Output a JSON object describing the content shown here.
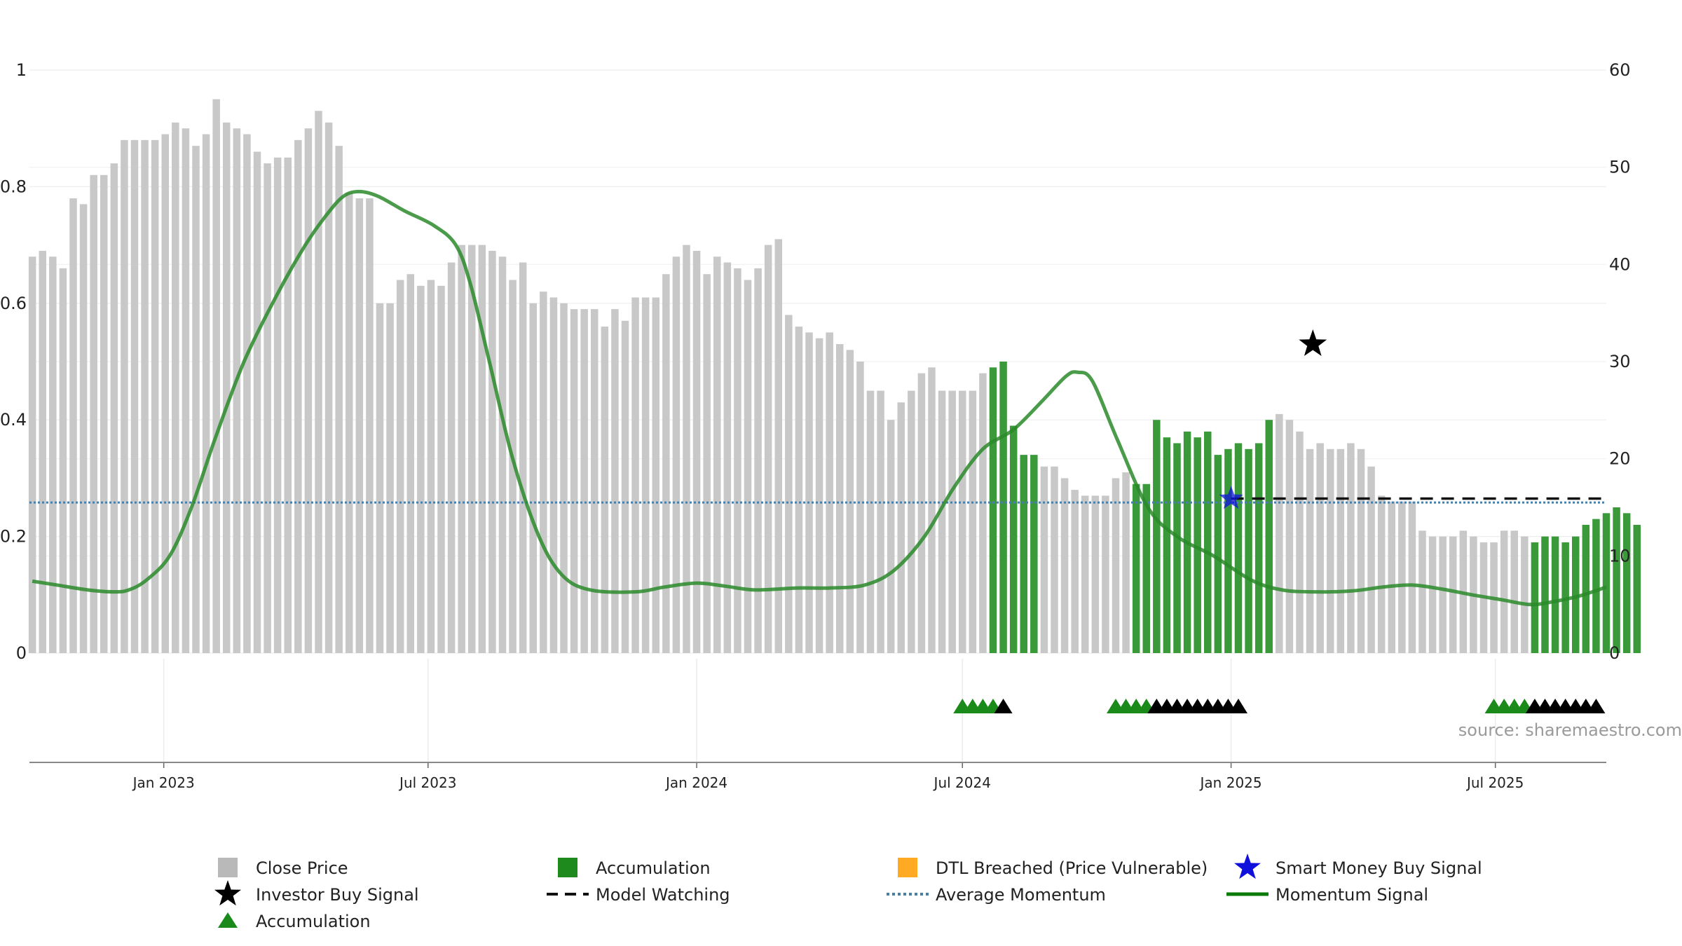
{
  "chart_data": {
    "type": "bar",
    "title": "",
    "xlabel": "",
    "ylabel": "",
    "y_left": {
      "range": [
        0,
        1
      ],
      "tick_labels": [
        "0",
        "0.2",
        "0.4",
        "0.6",
        "0.8",
        "1"
      ],
      "tick_values": [
        0,
        0.2,
        0.4,
        0.6,
        0.8,
        1
      ]
    },
    "y_right": {
      "range": [
        0,
        60
      ],
      "tick_labels": [
        "0",
        "10",
        "20",
        "30",
        "40",
        "50",
        "60"
      ],
      "tick_values": [
        0,
        10,
        20,
        30,
        40,
        50,
        60
      ]
    },
    "x_ticks": [
      {
        "label": "Jan 2023",
        "date": "2023-01-01"
      },
      {
        "label": "Jul 2023",
        "date": "2023-07-01"
      },
      {
        "label": "Jan 2024",
        "date": "2024-01-01"
      },
      {
        "label": "Jul 2024",
        "date": "2024-07-01"
      },
      {
        "label": "Jan 2025",
        "date": "2025-01-01"
      },
      {
        "label": "Jul 2025",
        "date": "2025-07-01"
      }
    ],
    "x_range": [
      "2022-10-01",
      "2025-09-15"
    ],
    "grid": true,
    "colors": {
      "close_price": "#c8c8c8",
      "accumulation_bar": "#3a9a3a",
      "accumulation_marker": "#1a8a1a",
      "signal_marker": "#000000",
      "momentum": "#2a8a2a",
      "momentum_highlight": "#0a8a0a",
      "average_momentum": "#4a7fa8",
      "model_watching": "#111111",
      "smart_money": "#1010dd",
      "dtl_breached": "#ffaa22"
    },
    "bars": {
      "start_date": "2022-10-03",
      "step_days": 7,
      "accumulation_index_ranges": [
        [
          94,
          98
        ],
        [
          108,
          121
        ],
        [
          147,
          158
        ]
      ],
      "values": [
        0.68,
        0.69,
        0.68,
        0.66,
        0.78,
        0.77,
        0.82,
        0.82,
        0.84,
        0.88,
        0.88,
        0.88,
        0.88,
        0.89,
        0.91,
        0.9,
        0.87,
        0.89,
        0.95,
        0.91,
        0.9,
        0.89,
        0.86,
        0.84,
        0.85,
        0.85,
        0.88,
        0.9,
        0.93,
        0.91,
        0.87,
        0.79,
        0.78,
        0.78,
        0.6,
        0.6,
        0.64,
        0.65,
        0.63,
        0.64,
        0.63,
        0.67,
        0.7,
        0.7,
        0.7,
        0.69,
        0.68,
        0.64,
        0.67,
        0.6,
        0.62,
        0.61,
        0.6,
        0.59,
        0.59,
        0.59,
        0.56,
        0.59,
        0.57,
        0.61,
        0.61,
        0.61,
        0.65,
        0.68,
        0.7,
        0.69,
        0.65,
        0.68,
        0.67,
        0.66,
        0.64,
        0.66,
        0.7,
        0.71,
        0.58,
        0.56,
        0.55,
        0.54,
        0.55,
        0.53,
        0.52,
        0.5,
        0.45,
        0.45,
        0.4,
        0.43,
        0.45,
        0.48,
        0.49,
        0.45,
        0.45,
        0.45,
        0.45,
        0.48,
        0.49,
        0.5,
        0.39,
        0.34,
        0.34,
        0.32,
        0.32,
        0.3,
        0.28,
        0.27,
        0.27,
        0.27,
        0.3,
        0.31,
        0.29,
        0.29,
        0.4,
        0.37,
        0.36,
        0.38,
        0.37,
        0.38,
        0.34,
        0.35,
        0.36,
        0.35,
        0.36,
        0.4,
        0.41,
        0.4,
        0.38,
        0.35,
        0.36,
        0.35,
        0.35,
        0.36,
        0.35,
        0.32,
        0.27,
        0.26,
        0.26,
        0.26,
        0.21,
        0.2,
        0.2,
        0.2,
        0.21,
        0.2,
        0.19,
        0.19,
        0.21,
        0.21,
        0.2,
        0.19,
        0.2,
        0.2,
        0.19,
        0.2,
        0.22,
        0.23,
        0.24,
        0.25,
        0.24,
        0.22
      ]
    },
    "momentum_signal": {
      "name": "Momentum Signal",
      "points": [
        [
          "2022-10-03",
          7.4
        ],
        [
          "2022-10-20",
          7.0
        ],
        [
          "2022-11-10",
          6.5
        ],
        [
          "2022-11-28",
          6.3
        ],
        [
          "2022-12-08",
          6.5
        ],
        [
          "2022-12-20",
          7.5
        ],
        [
          "2023-01-05",
          10.0
        ],
        [
          "2023-01-20",
          15.0
        ],
        [
          "2023-02-05",
          22.0
        ],
        [
          "2023-02-25",
          30.0
        ],
        [
          "2023-03-20",
          37.0
        ],
        [
          "2023-04-08",
          42.0
        ],
        [
          "2023-04-22",
          45.0
        ],
        [
          "2023-05-04",
          47.0
        ],
        [
          "2023-05-15",
          47.5
        ],
        [
          "2023-05-28",
          47.0
        ],
        [
          "2023-06-15",
          45.5
        ],
        [
          "2023-07-05",
          44.0
        ],
        [
          "2023-07-20",
          42.0
        ],
        [
          "2023-07-30",
          38.0
        ],
        [
          "2023-08-12",
          30.0
        ],
        [
          "2023-08-28",
          20.0
        ],
        [
          "2023-09-15",
          12.0
        ],
        [
          "2023-10-01",
          8.0
        ],
        [
          "2023-10-20",
          6.5
        ],
        [
          "2023-11-20",
          6.3
        ],
        [
          "2023-12-10",
          6.8
        ],
        [
          "2024-01-01",
          7.2
        ],
        [
          "2024-01-20",
          6.9
        ],
        [
          "2024-02-10",
          6.5
        ],
        [
          "2024-03-10",
          6.7
        ],
        [
          "2024-04-01",
          6.7
        ],
        [
          "2024-04-25",
          7.0
        ],
        [
          "2024-05-15",
          8.5
        ],
        [
          "2024-06-05",
          12.0
        ],
        [
          "2024-06-25",
          17.0
        ],
        [
          "2024-07-15",
          21.0
        ],
        [
          "2024-08-05",
          23.0
        ],
        [
          "2024-08-25",
          26.0
        ],
        [
          "2024-09-10",
          28.5
        ],
        [
          "2024-09-18",
          28.9
        ],
        [
          "2024-09-28",
          28.0
        ],
        [
          "2024-10-15",
          22.0
        ],
        [
          "2024-11-05",
          15.0
        ],
        [
          "2024-11-25",
          12.0
        ],
        [
          "2024-12-20",
          10.0
        ],
        [
          "2025-01-15",
          7.5
        ],
        [
          "2025-02-05",
          6.5
        ],
        [
          "2025-02-28",
          6.3
        ],
        [
          "2025-03-25",
          6.4
        ],
        [
          "2025-04-15",
          6.8
        ],
        [
          "2025-05-05",
          7.0
        ],
        [
          "2025-05-25",
          6.6
        ],
        [
          "2025-06-15",
          6.0
        ],
        [
          "2025-07-05",
          5.5
        ],
        [
          "2025-07-25",
          5.0
        ],
        [
          "2025-08-10",
          5.3
        ],
        [
          "2025-08-28",
          5.9
        ],
        [
          "2025-09-15",
          6.8
        ]
      ]
    },
    "average_momentum": {
      "name": "Average Momentum",
      "value": 15.5
    },
    "model_watching": {
      "name": "Model Watching",
      "value": 15.9,
      "start": "2025-01-01"
    },
    "smart_money_buy_signal": {
      "name": "Smart Money Buy Signal",
      "date": "2025-01-01",
      "value": 15.9
    },
    "investor_buy_signal": {
      "name": "Investor Buy Signal",
      "date": "2025-02-26",
      "value": 31.8
    },
    "markers_row": [
      {
        "date": "2024-07-01",
        "color": "green"
      },
      {
        "date": "2024-07-08",
        "color": "green"
      },
      {
        "date": "2024-07-15",
        "color": "green"
      },
      {
        "date": "2024-07-22",
        "color": "green"
      },
      {
        "date": "2024-07-29",
        "color": "black"
      },
      {
        "date": "2024-10-14",
        "color": "green"
      },
      {
        "date": "2024-10-21",
        "color": "green"
      },
      {
        "date": "2024-10-28",
        "color": "green"
      },
      {
        "date": "2024-11-04",
        "color": "green"
      },
      {
        "date": "2024-11-11",
        "color": "black"
      },
      {
        "date": "2024-11-18",
        "color": "black"
      },
      {
        "date": "2024-11-25",
        "color": "black"
      },
      {
        "date": "2024-12-02",
        "color": "black"
      },
      {
        "date": "2024-12-09",
        "color": "black"
      },
      {
        "date": "2024-12-16",
        "color": "black"
      },
      {
        "date": "2024-12-23",
        "color": "black"
      },
      {
        "date": "2024-12-30",
        "color": "black"
      },
      {
        "date": "2025-01-06",
        "color": "black"
      },
      {
        "date": "2025-06-30",
        "color": "green"
      },
      {
        "date": "2025-07-07",
        "color": "green"
      },
      {
        "date": "2025-07-14",
        "color": "green"
      },
      {
        "date": "2025-07-21",
        "color": "green"
      },
      {
        "date": "2025-07-28",
        "color": "black"
      },
      {
        "date": "2025-08-04",
        "color": "black"
      },
      {
        "date": "2025-08-11",
        "color": "black"
      },
      {
        "date": "2025-08-18",
        "color": "black"
      },
      {
        "date": "2025-08-25",
        "color": "black"
      },
      {
        "date": "2025-09-01",
        "color": "black"
      },
      {
        "date": "2025-09-08",
        "color": "black"
      }
    ],
    "legend": {
      "position": "bottom",
      "items": [
        {
          "label": "Close Price",
          "symbol": "square",
          "color": "#b9b9b9"
        },
        {
          "label": "Accumulation",
          "symbol": "square",
          "color": "#1e8a1e"
        },
        {
          "label": "DTL Breached (Price Vulnerable)",
          "symbol": "square",
          "color": "#ffaa22"
        },
        {
          "label": "Smart Money Buy Signal",
          "symbol": "star",
          "color": "#1010dd"
        },
        {
          "label": "Investor Buy Signal",
          "symbol": "star",
          "color": "#000000"
        },
        {
          "label": "Model Watching",
          "symbol": "dash",
          "color": "#111111"
        },
        {
          "label": "Average Momentum",
          "symbol": "dot",
          "color": "#4a7fa8"
        },
        {
          "label": "Momentum Signal",
          "symbol": "line",
          "color": "#0a7a0a"
        },
        {
          "label": "Accumulation",
          "symbol": "triangle",
          "color": "#1a8a1a"
        }
      ]
    },
    "source": "source: sharemaestro.com"
  }
}
